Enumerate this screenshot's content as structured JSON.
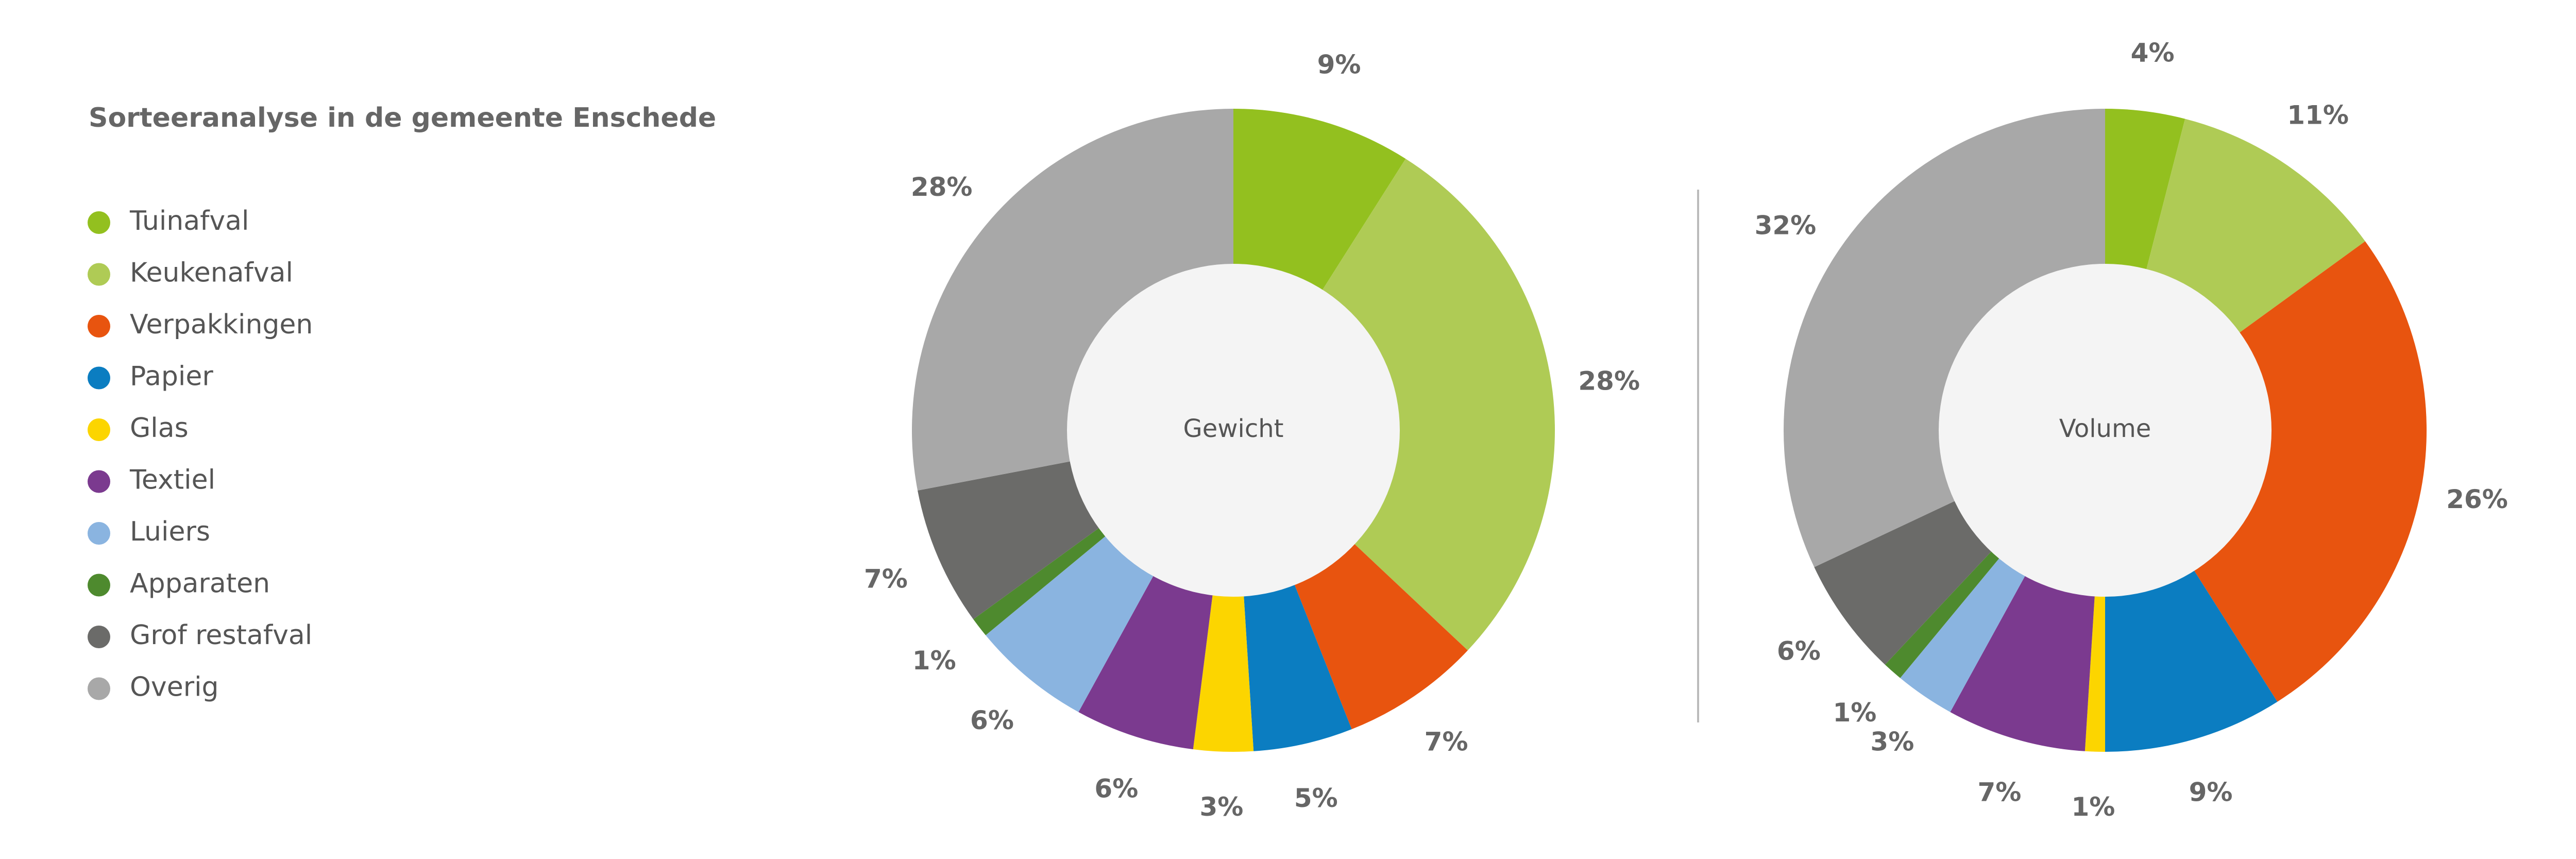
{
  "title": "Sorteeranalyse in de gemeente Enschede",
  "chart_data": [
    {
      "type": "donut",
      "center_label": "Gewicht",
      "categories": [
        "Tuinafval",
        "Keukenafval",
        "Verpakkingen",
        "Papier",
        "Glas",
        "Textiel",
        "Luiers",
        "Apparaten",
        "Grof restafval",
        "Overig"
      ],
      "values": [
        9,
        28,
        7,
        5,
        3,
        6,
        6,
        1,
        7,
        28
      ],
      "value_labels": [
        "9%",
        "28%",
        "7%",
        "5%",
        "3%",
        "6%",
        "6%",
        "1%",
        "7%",
        "28%"
      ],
      "colors": [
        "#93c01f",
        "#afcb55",
        "#e8540f",
        "#0b7dc1",
        "#fcd500",
        "#7b3a8f",
        "#8ab4e0",
        "#4e8a2e",
        "#6b6b69",
        "#a8a8a8"
      ]
    },
    {
      "type": "donut",
      "center_label": "Volume",
      "categories": [
        "Tuinafval",
        "Keukenafval",
        "Verpakkingen",
        "Papier",
        "Glas",
        "Textiel",
        "Luiers",
        "Apparaten",
        "Grof restafval",
        "Overig"
      ],
      "values": [
        4,
        11,
        26,
        9,
        1,
        7,
        3,
        1,
        6,
        32
      ],
      "value_labels": [
        "4%",
        "11%",
        "26%",
        "9%",
        "1%",
        "7%",
        "3%",
        "1%",
        "6%",
        "32%"
      ],
      "colors": [
        "#93c01f",
        "#afcb55",
        "#e8540f",
        "#0b7dc1",
        "#fcd500",
        "#7b3a8f",
        "#8ab4e0",
        "#4e8a2e",
        "#6b6b69",
        "#a8a8a8"
      ]
    }
  ]
}
